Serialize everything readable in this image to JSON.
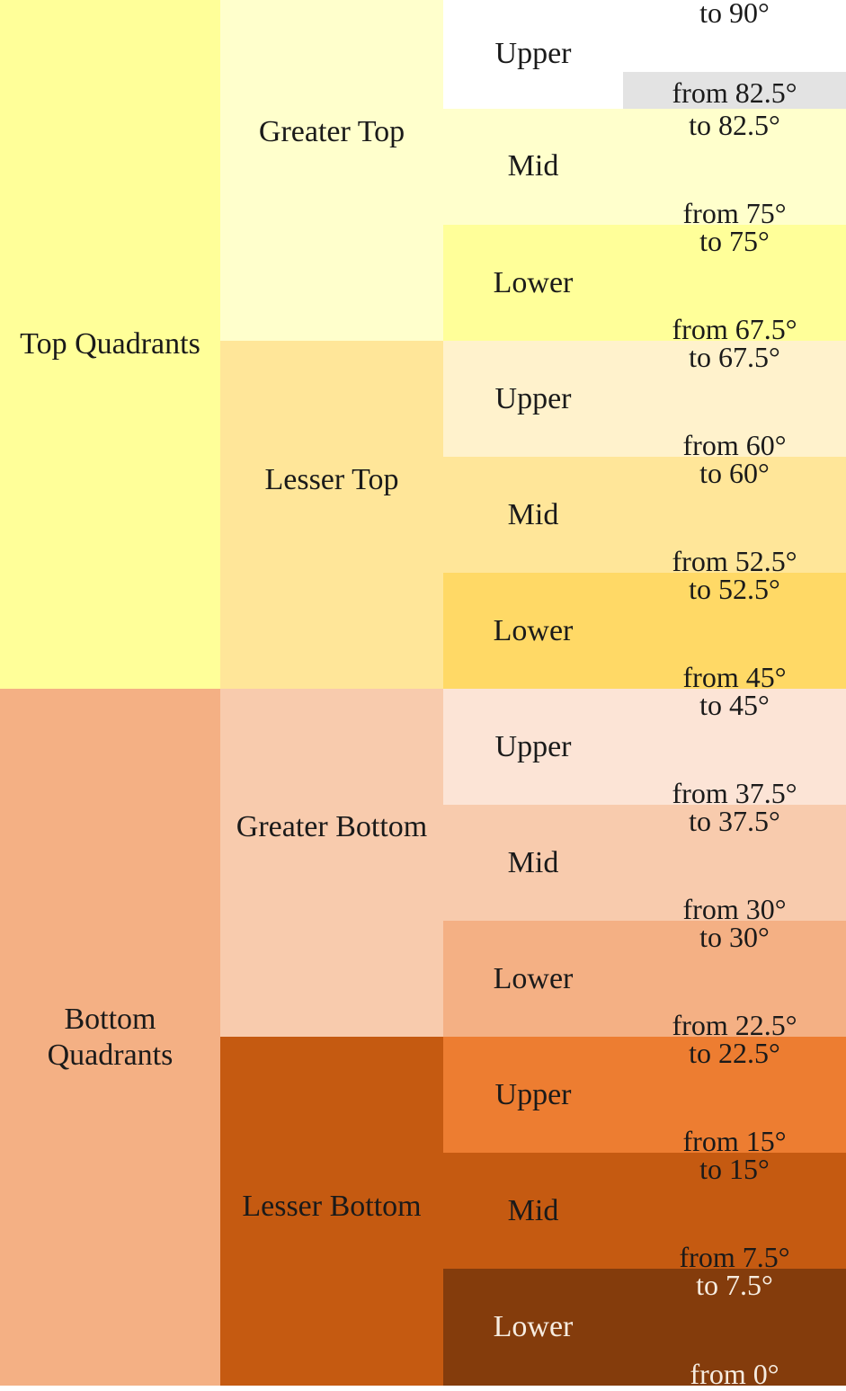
{
  "colors": {
    "top_quadrants": "#ffff99",
    "bottom_quadrants": "#f4b084",
    "greater_top": "#ffffcc",
    "lesser_top": "#ffe699",
    "greater_bottom": "#f8cbad",
    "lesser_bottom": "#c55a11",
    "upper_greater_top": "#ffffff",
    "mid_greater_top": "#ffffcc",
    "lower_greater_top": "#ffff99",
    "upper_lesser_top": "#fff2cc",
    "mid_lesser_top": "#ffe699",
    "lower_lesser_top": "#ffd966",
    "upper_greater_bottom": "#fce4d6",
    "mid_greater_bottom": "#f8cbad",
    "lower_greater_bottom": "#f4b084",
    "upper_lesser_bottom": "#ed7d31",
    "mid_lesser_bottom": "#c55a11",
    "lower_lesser_bottom": "#843c0c",
    "highlight_strip": "#e3e3e3"
  },
  "quadrants": [
    {
      "label": "Top Quadrants",
      "groups": [
        {
          "label": "Greater Top",
          "bands": [
            {
              "label": "Upper",
              "to": "to 90°",
              "from": "from 82.5°"
            },
            {
              "label": "Mid",
              "to": "to 82.5°",
              "from": "from 75°"
            },
            {
              "label": "Lower",
              "to": "to 75°",
              "from": "from 67.5°"
            }
          ]
        },
        {
          "label": "Lesser Top",
          "bands": [
            {
              "label": "Upper",
              "to": "to 67.5°",
              "from": "from 60°"
            },
            {
              "label": "Mid",
              "to": "to 60°",
              "from": "from 52.5°"
            },
            {
              "label": "Lower",
              "to": "to 52.5°",
              "from": "from 45°"
            }
          ]
        }
      ]
    },
    {
      "label": "Bottom Quadrants",
      "label_line1": "Bottom",
      "label_line2": "Quadrants",
      "groups": [
        {
          "label": "Greater Bottom",
          "bands": [
            {
              "label": "Upper",
              "to": "to 45°",
              "from": "from 37.5°"
            },
            {
              "label": "Mid",
              "to": "to 37.5°",
              "from": "from 30°"
            },
            {
              "label": "Lower",
              "to": "to 30°",
              "from": "from 22.5°"
            }
          ]
        },
        {
          "label": "Lesser Bottom",
          "bands": [
            {
              "label": "Upper",
              "to": "to 22.5°",
              "from": "from 15°"
            },
            {
              "label": "Mid",
              "to": "to 15°",
              "from": "from 7.5°"
            },
            {
              "label": "Lower",
              "to": "to 7.5°",
              "from": "from 0°"
            }
          ]
        }
      ]
    }
  ]
}
